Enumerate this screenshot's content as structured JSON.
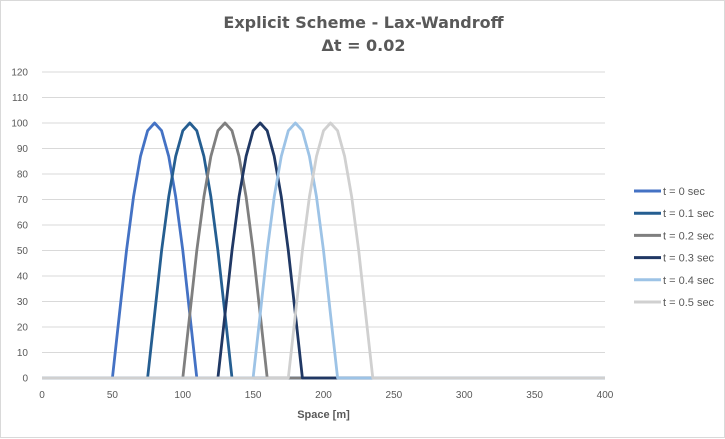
{
  "chart_data": {
    "type": "line",
    "title": "Explicit Scheme - Lax-Wandroff",
    "subtitle": "Δt = 0.02",
    "xlabel": "Space [m]",
    "ylabel": "",
    "xlim": [
      0,
      400
    ],
    "ylim": [
      0,
      120
    ],
    "x_ticks": [
      0,
      50,
      100,
      150,
      200,
      250,
      300,
      350,
      400
    ],
    "y_ticks": [
      0,
      10,
      20,
      30,
      40,
      50,
      60,
      70,
      80,
      90,
      100,
      110,
      120
    ],
    "grid": "horizontal",
    "legend": "right",
    "x": [
      0,
      5,
      10,
      15,
      20,
      25,
      30,
      35,
      40,
      45,
      50,
      55,
      60,
      65,
      70,
      75,
      80,
      85,
      90,
      95,
      100,
      105,
      110,
      115,
      120,
      125,
      130,
      135,
      140,
      145,
      150,
      155,
      160,
      165,
      170,
      175,
      180,
      185,
      190,
      195,
      200,
      205,
      210,
      215,
      220,
      225,
      230,
      235,
      240,
      245,
      250,
      255,
      260,
      265,
      270,
      275,
      280,
      285,
      290,
      295,
      300,
      305,
      310,
      315,
      320,
      325,
      330,
      335,
      340,
      345,
      350,
      355,
      360,
      365,
      370,
      375,
      380,
      385,
      390,
      395,
      400
    ],
    "series": [
      {
        "name": "t = 0 sec",
        "color": "#4472c4",
        "values": [
          0,
          0,
          0,
          0,
          0,
          0,
          0,
          0,
          0,
          0,
          0,
          25,
          50,
          71,
          87,
          97,
          100,
          97,
          87,
          71,
          50,
          25,
          0,
          0,
          0,
          0,
          0,
          0,
          0,
          0,
          0,
          0,
          0,
          0,
          0,
          0,
          0,
          0,
          0,
          0,
          0,
          0,
          0,
          0,
          0,
          0,
          0,
          0,
          0,
          0,
          0,
          0,
          0,
          0,
          0,
          0,
          0,
          0,
          0,
          0,
          0,
          0,
          0,
          0,
          0,
          0,
          0,
          0,
          0,
          0,
          0,
          0,
          0,
          0,
          0,
          0,
          0,
          0,
          0,
          0,
          0
        ]
      },
      {
        "name": "t = 0.1 sec",
        "color": "#255e91",
        "values": [
          0,
          0,
          0,
          0,
          0,
          0,
          0,
          0,
          0,
          0,
          0,
          0,
          0,
          0,
          0,
          0,
          25,
          50,
          71,
          87,
          97,
          100,
          97,
          87,
          71,
          50,
          25,
          0,
          0,
          0,
          0,
          0,
          0,
          0,
          0,
          0,
          0,
          0,
          0,
          0,
          0,
          0,
          0,
          0,
          0,
          0,
          0,
          0,
          0,
          0,
          0,
          0,
          0,
          0,
          0,
          0,
          0,
          0,
          0,
          0,
          0,
          0,
          0,
          0,
          0,
          0,
          0,
          0,
          0,
          0,
          0,
          0,
          0,
          0,
          0,
          0,
          0,
          0,
          0,
          0,
          0
        ]
      },
      {
        "name": "t = 0.2 sec",
        "color": "#7f7f7f",
        "values": [
          0,
          0,
          0,
          0,
          0,
          0,
          0,
          0,
          0,
          0,
          0,
          0,
          0,
          0,
          0,
          0,
          0,
          0,
          0,
          0,
          0,
          25,
          50,
          71,
          87,
          97,
          100,
          97,
          87,
          71,
          50,
          25,
          0,
          0,
          0,
          0,
          0,
          0,
          0,
          0,
          0,
          0,
          0,
          0,
          0,
          0,
          0,
          0,
          0,
          0,
          0,
          0,
          0,
          0,
          0,
          0,
          0,
          0,
          0,
          0,
          0,
          0,
          0,
          0,
          0,
          0,
          0,
          0,
          0,
          0,
          0,
          0,
          0,
          0,
          0,
          0,
          0,
          0,
          0,
          0,
          0
        ]
      },
      {
        "name": "t = 0.3 sec",
        "color": "#203864",
        "values": [
          0,
          0,
          0,
          0,
          0,
          0,
          0,
          0,
          0,
          0,
          0,
          0,
          0,
          0,
          0,
          0,
          0,
          0,
          0,
          0,
          0,
          0,
          0,
          0,
          0,
          0,
          25,
          50,
          71,
          87,
          97,
          100,
          97,
          87,
          71,
          50,
          25,
          0,
          0,
          0,
          0,
          0,
          0,
          0,
          0,
          0,
          0,
          0,
          0,
          0,
          0,
          0,
          0,
          0,
          0,
          0,
          0,
          0,
          0,
          0,
          0,
          0,
          0,
          0,
          0,
          0,
          0,
          0,
          0,
          0,
          0,
          0,
          0,
          0,
          0,
          0,
          0,
          0,
          0,
          0,
          0
        ]
      },
      {
        "name": "t = 0.4 sec",
        "color": "#9dc3e6",
        "values": [
          0,
          0,
          0,
          0,
          0,
          0,
          0,
          0,
          0,
          0,
          0,
          0,
          0,
          0,
          0,
          0,
          0,
          0,
          0,
          0,
          0,
          0,
          0,
          0,
          0,
          0,
          0,
          0,
          0,
          0,
          0,
          25,
          50,
          71,
          87,
          97,
          100,
          97,
          87,
          71,
          50,
          25,
          0,
          0,
          0,
          0,
          0,
          0,
          0,
          0,
          0,
          0,
          0,
          0,
          0,
          0,
          0,
          0,
          0,
          0,
          0,
          0,
          0,
          0,
          0,
          0,
          0,
          0,
          0,
          0,
          0,
          0,
          0,
          0,
          0,
          0,
          0,
          0,
          0,
          0,
          0
        ]
      },
      {
        "name": "t = 0.5 sec",
        "color": "#d0d0d0",
        "values": [
          0,
          0,
          0,
          0,
          0,
          0,
          0,
          0,
          0,
          0,
          0,
          0,
          0,
          0,
          0,
          0,
          0,
          0,
          0,
          0,
          0,
          0,
          0,
          0,
          0,
          0,
          0,
          0,
          0,
          0,
          0,
          0,
          0,
          0,
          0,
          0,
          25,
          50,
          71,
          87,
          97,
          100,
          97,
          87,
          71,
          50,
          25,
          0,
          0,
          0,
          0,
          0,
          0,
          0,
          0,
          0,
          0,
          0,
          0,
          0,
          0,
          0,
          0,
          0,
          0,
          0,
          0,
          0,
          0,
          0,
          0,
          0,
          0,
          0,
          0,
          0,
          0,
          0,
          0,
          0,
          0
        ]
      }
    ]
  }
}
